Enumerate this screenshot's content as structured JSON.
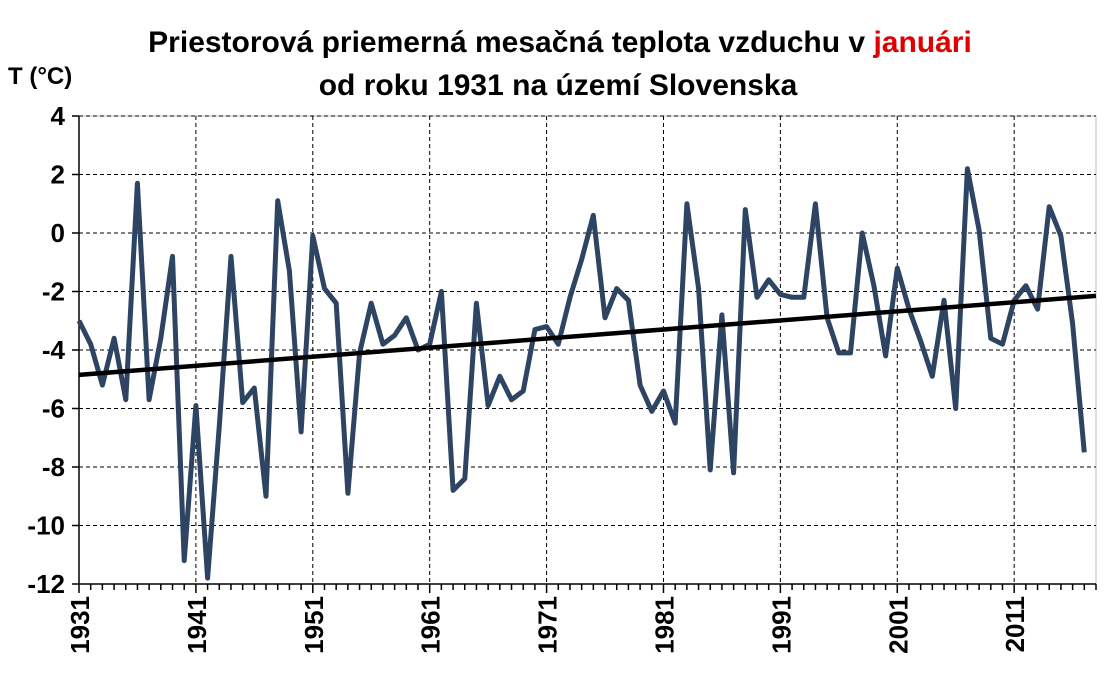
{
  "chart_data": {
    "type": "line",
    "title_line1_main": "Priestorová priemerná mesačná teplota vzduchu v ",
    "title_line1_highlight": "januári",
    "title_line2": "od roku 1931 na území Slovenska",
    "ylabel": "T (°C)",
    "xlabel": "",
    "ylim": [
      -12,
      4
    ],
    "xlim": [
      1931,
      2018
    ],
    "yticks": [
      4,
      2,
      0,
      -2,
      -4,
      -6,
      -8,
      -10,
      -12
    ],
    "xticks": [
      1931,
      1941,
      1951,
      1961,
      1971,
      1981,
      1991,
      2001,
      2011
    ],
    "grid": true,
    "legend": "none",
    "colors": {
      "series": "#2d4463",
      "trend": "#000000",
      "title_highlight": "#e00000"
    },
    "series": [
      {
        "x": [
          1931,
          1932,
          1933,
          1934,
          1935,
          1936,
          1937,
          1938,
          1939,
          1940,
          1941,
          1942,
          1943,
          1944,
          1945,
          1946,
          1947,
          1948,
          1949,
          1950,
          1951,
          1952,
          1953,
          1954,
          1955,
          1956,
          1957,
          1958,
          1959,
          1960,
          1961,
          1962,
          1963,
          1964,
          1965,
          1966,
          1967,
          1968,
          1969,
          1970,
          1971,
          1972,
          1973,
          1974,
          1975,
          1976,
          1977,
          1978,
          1979,
          1980,
          1981,
          1982,
          1983,
          1984,
          1985,
          1986,
          1987,
          1988,
          1989,
          1990,
          1991,
          1992,
          1993,
          1994,
          1995,
          1996,
          1997,
          1998,
          1999,
          2000,
          2001,
          2002,
          2003,
          2004,
          2005,
          2006,
          2007,
          2008,
          2009,
          2010,
          2011,
          2012,
          2013,
          2014,
          2015,
          2016,
          2017
        ],
        "values": [
          -3.0,
          -3.8,
          -5.2,
          -3.6,
          -5.7,
          1.7,
          -5.7,
          -3.6,
          -0.8,
          -11.2,
          -5.9,
          -11.8,
          -6.6,
          -0.8,
          -5.8,
          -5.3,
          -9.0,
          1.1,
          -1.3,
          -6.8,
          -0.1,
          -1.9,
          -2.4,
          -8.9,
          -4.1,
          -2.4,
          -3.8,
          -3.5,
          -2.9,
          -4.0,
          -3.8,
          -2.0,
          -8.8,
          -8.4,
          -2.4,
          -5.9,
          -4.9,
          -5.7,
          -5.4,
          -3.3,
          -3.2,
          -3.8,
          -2.2,
          -0.9,
          0.6,
          -2.9,
          -1.9,
          -2.3,
          -5.2,
          -6.1,
          -5.4,
          -6.5,
          1.0,
          -1.9,
          -8.1,
          -2.8,
          -8.2,
          0.8,
          -2.2,
          -1.6,
          -2.1,
          -2.2,
          -2.2,
          1.0,
          -2.9,
          -4.1,
          -4.1,
          0.0,
          -1.8,
          -4.2,
          -1.2,
          -2.6,
          -3.7,
          -4.9,
          -2.3,
          -6.0,
          2.2,
          0.1,
          -3.6,
          -3.8,
          -2.3,
          -1.8,
          -2.6,
          0.9,
          -0.1,
          -3.1,
          -7.5
        ]
      }
    ],
    "trend": {
      "x": [
        1931,
        2018
      ],
      "values": [
        -4.85,
        -2.15
      ]
    }
  }
}
